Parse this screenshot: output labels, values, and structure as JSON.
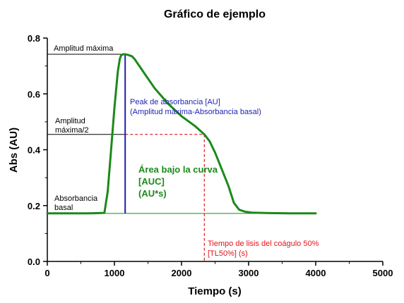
{
  "chart_data": {
    "type": "line",
    "title": "Gráfico de ejemplo",
    "xlabel": "Tiempo (s)",
    "ylabel": "Abs (AU)",
    "xlim": [
      0,
      5000
    ],
    "ylim": [
      0.0,
      0.8
    ],
    "xticks": [
      "0",
      "1000",
      "2000",
      "3000",
      "4000",
      "5000"
    ],
    "yticks": [
      "0.0",
      "0.2",
      "0.4",
      "0.6",
      "0.8"
    ],
    "grid": false,
    "series": [
      {
        "color": "#1a8a1a",
        "x": [
          0,
          300,
          600,
          850,
          900,
          950,
          1000,
          1050,
          1080,
          1100,
          1130,
          1160,
          1200,
          1260,
          1300,
          1400,
          1600,
          1800,
          2000,
          2200,
          2340,
          2420,
          2500,
          2600,
          2700,
          2780,
          2860,
          2950,
          3050,
          3300,
          3600,
          4000
        ],
        "y": [
          0.172,
          0.172,
          0.172,
          0.174,
          0.25,
          0.4,
          0.55,
          0.68,
          0.725,
          0.738,
          0.742,
          0.742,
          0.74,
          0.735,
          0.725,
          0.69,
          0.62,
          0.565,
          0.52,
          0.485,
          0.455,
          0.43,
          0.39,
          0.33,
          0.27,
          0.21,
          0.185,
          0.178,
          0.175,
          0.173,
          0.172,
          0.172
        ]
      }
    ],
    "reference_lines": {
      "amplitud_maxima": {
        "y": 0.742,
        "x_end": 1160,
        "color": "#000000"
      },
      "amplitud_media": {
        "y": 0.455,
        "x_end": 2340,
        "color": "#000000",
        "dashed_color": "#e0151b"
      },
      "absorbancia_basal": {
        "y": 0.172,
        "color": "#1a8a1a"
      },
      "peak": {
        "x": 1160,
        "y_from": 0.172,
        "y_to": 0.742,
        "color": "#1f1faf"
      },
      "tl50": {
        "x": 2340,
        "y_from": 0.455,
        "y_to": 0.0,
        "color": "#e0151b"
      }
    },
    "annotations": {
      "amplitud_maxima": "Amplitud máxima",
      "amplitud_media_line1": "Amplitud",
      "amplitud_media_line2": "máxima/2",
      "absorbancia_basal_line1": "Absorbancia",
      "absorbancia_basal_line2": "basal",
      "peak_line1": "Peak de absorbancia [AU]",
      "peak_line2": "(Amplitud máxima-Absorbancia basal)",
      "auc_line1": "Área bajo la curva",
      "auc_line2": "[AUC]",
      "auc_line3": "(AU*s)",
      "tl50_line1": "Tiempo de lisis del coágulo 50%",
      "tl50_line2": "[TL50%] (s)"
    }
  }
}
